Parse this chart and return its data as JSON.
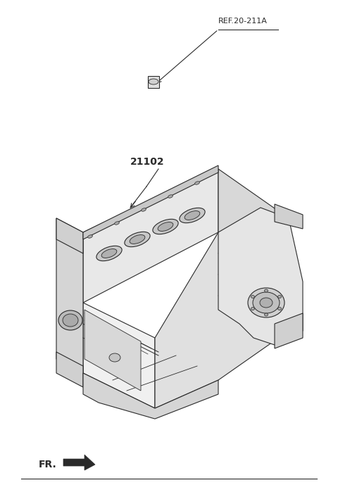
{
  "bg_color": "#ffffff",
  "line_color": "#2a2a2a",
  "ref_label": "REF.20-211A",
  "part_label": "21102",
  "fr_label": "FR.",
  "fig_width": 4.8,
  "fig_height": 7.16,
  "dpi": 100
}
